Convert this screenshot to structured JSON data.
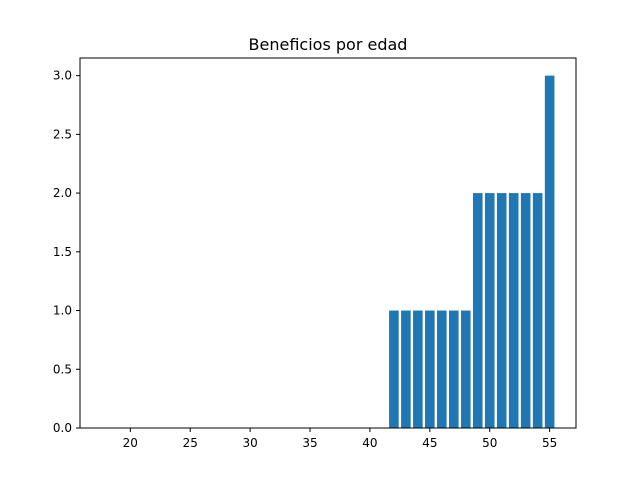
{
  "chart_data": {
    "type": "bar",
    "title": "Beneficios por edad",
    "xlabel": "",
    "ylabel": "",
    "x": [
      17,
      18,
      19,
      20,
      21,
      22,
      23,
      24,
      25,
      26,
      27,
      28,
      29,
      30,
      31,
      32,
      33,
      34,
      35,
      36,
      37,
      38,
      39,
      40,
      41,
      42,
      43,
      44,
      45,
      46,
      47,
      48,
      49,
      50,
      51,
      52,
      53,
      54,
      55
    ],
    "values": [
      0,
      0,
      0,
      0,
      0,
      0,
      0,
      0,
      0,
      0,
      0,
      0,
      0,
      0,
      0,
      0,
      0,
      0,
      0,
      0,
      0,
      0,
      0,
      0,
      0,
      1,
      1,
      1,
      1,
      1,
      1,
      1,
      2,
      2,
      2,
      2,
      2,
      2,
      3
    ],
    "xlim": [
      15.8,
      57.2
    ],
    "ylim": [
      0,
      3.15
    ],
    "xticks": [
      20,
      25,
      30,
      35,
      40,
      45,
      50,
      55
    ],
    "yticks": [
      0.0,
      0.5,
      1.0,
      1.5,
      2.0,
      2.5,
      3.0
    ],
    "ytick_labels": [
      "0.0",
      "0.5",
      "1.0",
      "1.5",
      "2.0",
      "2.5",
      "3.0"
    ],
    "bar_color": "#1f77b4",
    "grid": false,
    "legend": "none"
  }
}
